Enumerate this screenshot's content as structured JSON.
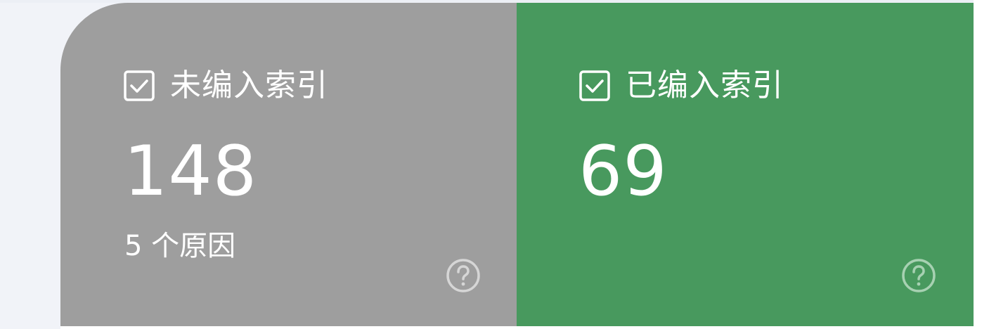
{
  "cards": [
    {
      "label": "未编入索引",
      "count": "148",
      "subtext": "5 个原因",
      "checked": true,
      "color": "#9e9e9e",
      "icon": "checkbox-checked-icon",
      "help_icon": "help-circle-icon"
    },
    {
      "label": "已编入索引",
      "count": "69",
      "checked": true,
      "color": "#48995e",
      "icon": "checkbox-checked-icon",
      "help_icon": "help-circle-icon"
    }
  ]
}
